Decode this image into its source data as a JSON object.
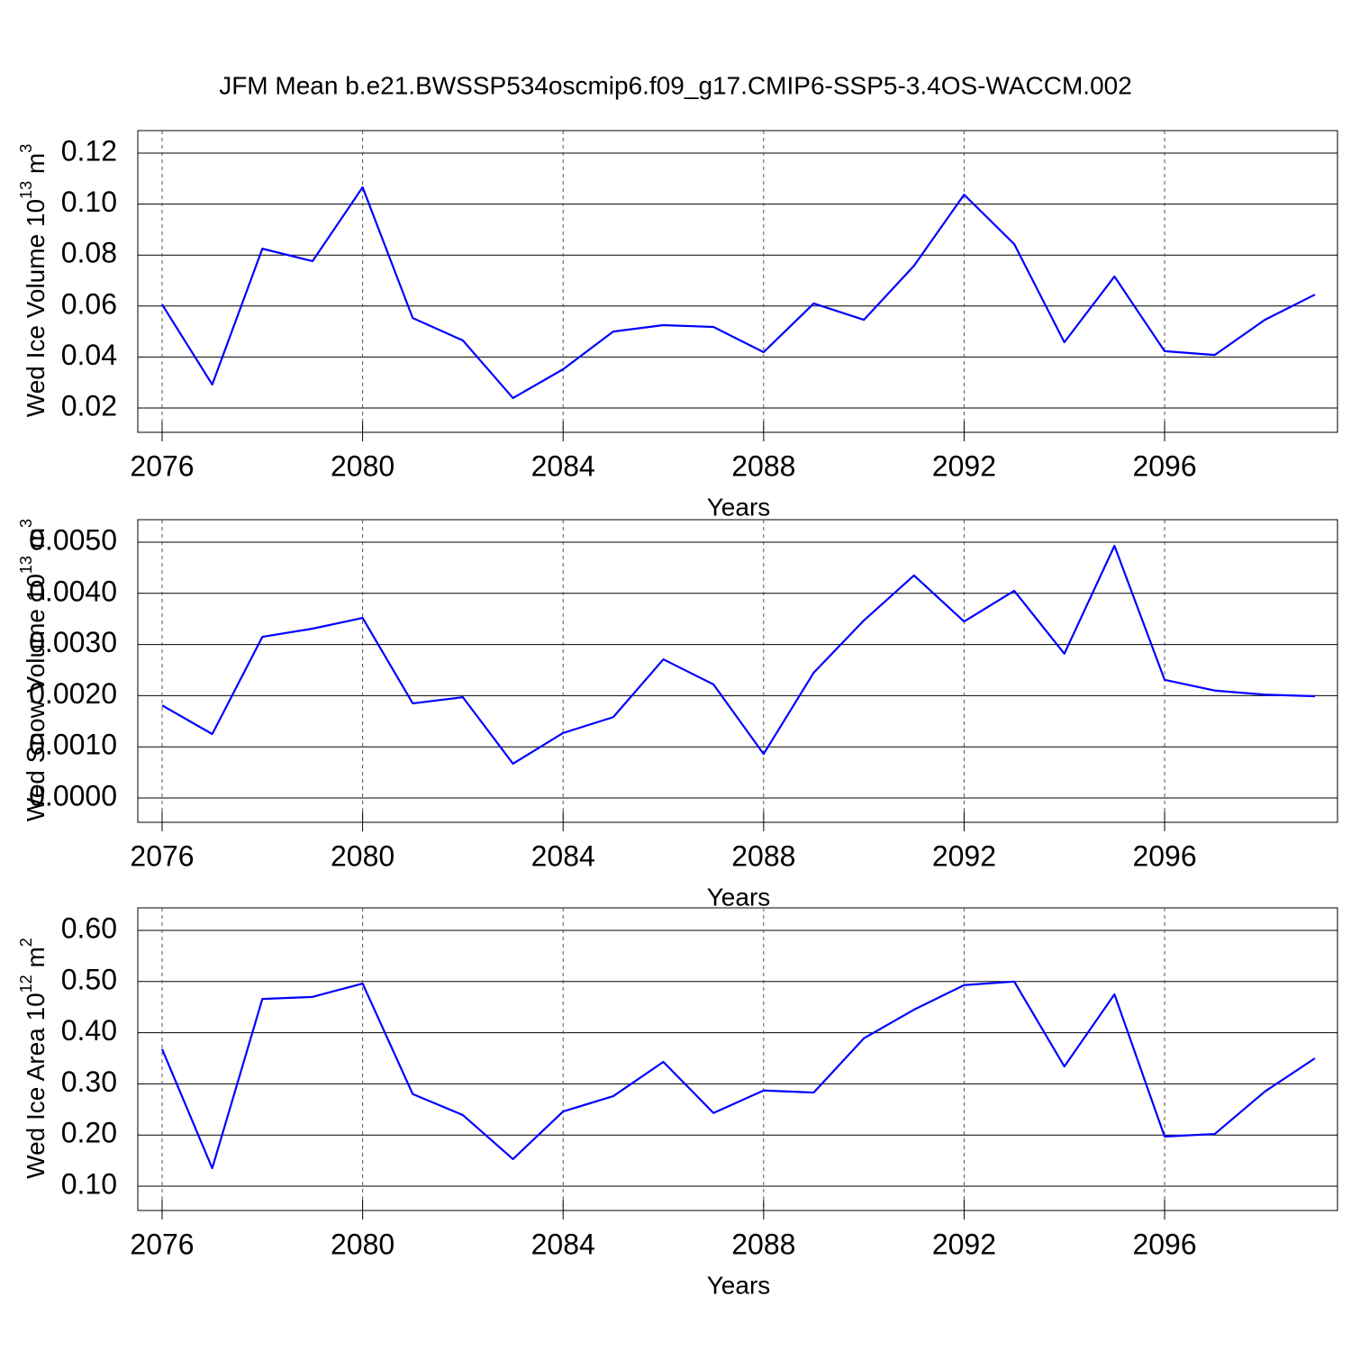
{
  "title": "JFM Mean b.e21.BWSSP534oscmip6.f09_g17.CMIP6-SSP5-3.4OS-WACCM.002",
  "chart_data": [
    {
      "type": "line",
      "xlabel": "Years",
      "ylabel": [
        "Wed Ice Volume 10",
        "13",
        " m",
        "3"
      ],
      "x": [
        2076,
        2077,
        2078,
        2079,
        2080,
        2081,
        2082,
        2083,
        2084,
        2085,
        2086,
        2087,
        2088,
        2089,
        2090,
        2091,
        2092,
        2093,
        2094,
        2095,
        2096,
        2097,
        2098,
        2099
      ],
      "series": [
        {
          "color": "#0000ff",
          "values": [
            0.0606,
            0.0292,
            0.0825,
            0.0776,
            0.1066,
            0.0553,
            0.0465,
            0.0239,
            0.0352,
            0.05,
            0.0525,
            0.0518,
            0.0419,
            0.061,
            0.0546,
            0.0758,
            0.1037,
            0.0843,
            0.0458,
            0.0716,
            0.0423,
            0.0408,
            0.0546,
            0.0645
          ]
        }
      ],
      "xlim": [
        2076,
        2099
      ],
      "xticks": [
        2076,
        2080,
        2084,
        2088,
        2092,
        2096
      ],
      "ylim": [
        0.02,
        0.12
      ],
      "yticks": [
        0.02,
        0.04,
        0.06,
        0.08,
        {
          "value": 0.1,
          "label": "0.10"
        },
        0.12
      ],
      "grid": true
    },
    {
      "type": "line",
      "xlabel": "Years",
      "ylabel": [
        "Wed Snow Volume 10",
        "13",
        " m",
        "3"
      ],
      "x": [
        2076,
        2077,
        2078,
        2079,
        2080,
        2081,
        2082,
        2083,
        2084,
        2085,
        2086,
        2087,
        2088,
        2089,
        2090,
        2091,
        2092,
        2093,
        2094,
        2095,
        2096,
        2097,
        2098,
        2099
      ],
      "series": [
        {
          "color": "#0000ff",
          "values": [
            0.00181,
            0.00125,
            0.00315,
            0.00331,
            0.00352,
            0.00185,
            0.00197,
            0.00067,
            0.00127,
            0.00158,
            0.00271,
            0.00222,
            0.00086,
            0.00245,
            0.00347,
            0.00435,
            0.00345,
            0.00405,
            0.00282,
            0.00493,
            0.00231,
            0.0021,
            0.00202,
            0.00199
          ]
        }
      ],
      "xlim": [
        2076,
        2099
      ],
      "xticks": [
        2076,
        2080,
        2084,
        2088,
        2092,
        2096
      ],
      "ylim": [
        0,
        0.005
      ],
      "yticks": [
        {
          "value": 0,
          "label": "0.0000"
        },
        {
          "value": 0.001,
          "label": "0.0010"
        },
        {
          "value": 0.002,
          "label": "0.0020"
        },
        {
          "value": 0.003,
          "label": "0.0030"
        },
        {
          "value": 0.004,
          "label": "0.0040"
        },
        {
          "value": 0.005,
          "label": "0.0050"
        }
      ],
      "grid": true
    },
    {
      "type": "line",
      "xlabel": "Years",
      "ylabel": [
        "Wed Ice Area 10",
        "12",
        " m",
        "2"
      ],
      "x": [
        2076,
        2077,
        2078,
        2079,
        2080,
        2081,
        2082,
        2083,
        2084,
        2085,
        2086,
        2087,
        2088,
        2089,
        2090,
        2091,
        2092,
        2093,
        2094,
        2095,
        2096,
        2097,
        2098,
        2099
      ],
      "series": [
        {
          "color": "#0000ff",
          "values": [
            0.368,
            0.135,
            0.466,
            0.47,
            0.496,
            0.28,
            0.239,
            0.153,
            0.246,
            0.276,
            0.343,
            0.243,
            0.287,
            0.283,
            0.389,
            0.445,
            0.493,
            0.5,
            0.334,
            0.475,
            0.197,
            0.202,
            0.285,
            0.35
          ]
        }
      ],
      "xlim": [
        2076,
        2099
      ],
      "xticks": [
        2076,
        2080,
        2084,
        2088,
        2092,
        2096
      ],
      "ylim": [
        0.1,
        0.6
      ],
      "yticks": [
        {
          "value": 0.1,
          "label": "0.10"
        },
        {
          "value": 0.2,
          "label": "0.20"
        },
        {
          "value": 0.3,
          "label": "0.30"
        },
        {
          "value": 0.4,
          "label": "0.40"
        },
        {
          "value": 0.5,
          "label": "0.50"
        },
        {
          "value": 0.6,
          "label": "0.60"
        }
      ],
      "grid": true
    }
  ]
}
